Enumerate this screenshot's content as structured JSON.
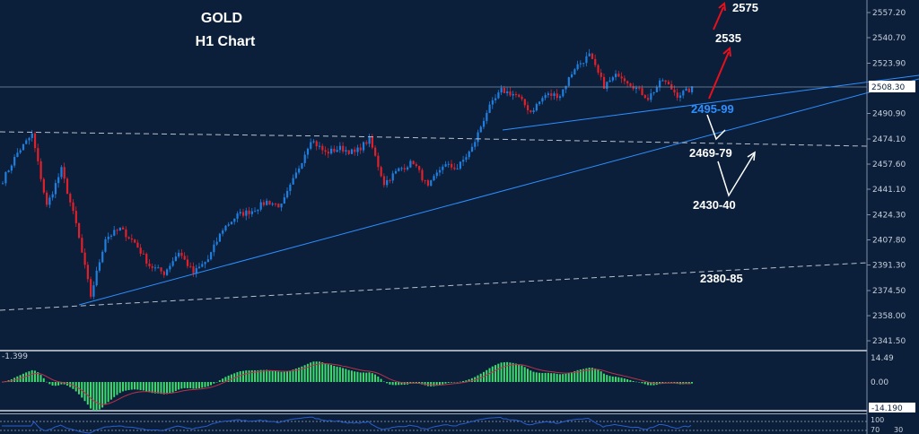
{
  "chart_data": {
    "type": "candlestick",
    "title": "GOLD",
    "subtitle": "H1 Chart",
    "symbol": "GOLD",
    "timeframe": "H1",
    "ylim": [
      2335,
      2562
    ],
    "y_ticks": [
      "2557.20",
      "2540.70",
      "2523.90",
      "2508.30",
      "2490.90",
      "2474.10",
      "2457.60",
      "2441.10",
      "2424.30",
      "2407.80",
      "2391.30",
      "2374.50",
      "2358.00",
      "2341.50"
    ],
    "current_price": "2508.30",
    "closes": [
      2447,
      2465,
      2477,
      2430,
      2454,
      2418,
      2371,
      2409,
      2415,
      2406,
      2391,
      2386,
      2400,
      2386,
      2395,
      2415,
      2424,
      2427,
      2433,
      2430,
      2451,
      2474,
      2465,
      2468,
      2465,
      2474,
      2445,
      2454,
      2459,
      2442,
      2457,
      2455,
      2468,
      2492,
      2506,
      2503,
      2492,
      2503,
      2503,
      2521,
      2529,
      2509,
      2517,
      2509,
      2501,
      2513,
      2503,
      2507
    ],
    "annotations": [
      {
        "text": "2575",
        "color": "#ffffff"
      },
      {
        "text": "2535",
        "color": "#ffffff"
      },
      {
        "text": "2495-99",
        "color": "#2e8fff"
      },
      {
        "text": "2469-79",
        "color": "#ffffff"
      },
      {
        "text": "2430-40",
        "color": "#ffffff"
      },
      {
        "text": "2380-85",
        "color": "#ffffff"
      }
    ],
    "macd": {
      "value_label": "-1.399",
      "ticks": [
        "14.49",
        "0.00",
        "-14.190"
      ]
    },
    "rsi": {
      "ticks": [
        "100",
        "70",
        "30"
      ]
    },
    "colors": {
      "background": "#0b1f3a",
      "bull": "#1f7fe0",
      "bear": "#e0202a",
      "macd_hist": "#3ddc6e",
      "signal": "#c0304a",
      "rsi": "#2a5fd0",
      "trendline": "#2e8fff",
      "arrow_up": "#e8101c"
    }
  }
}
